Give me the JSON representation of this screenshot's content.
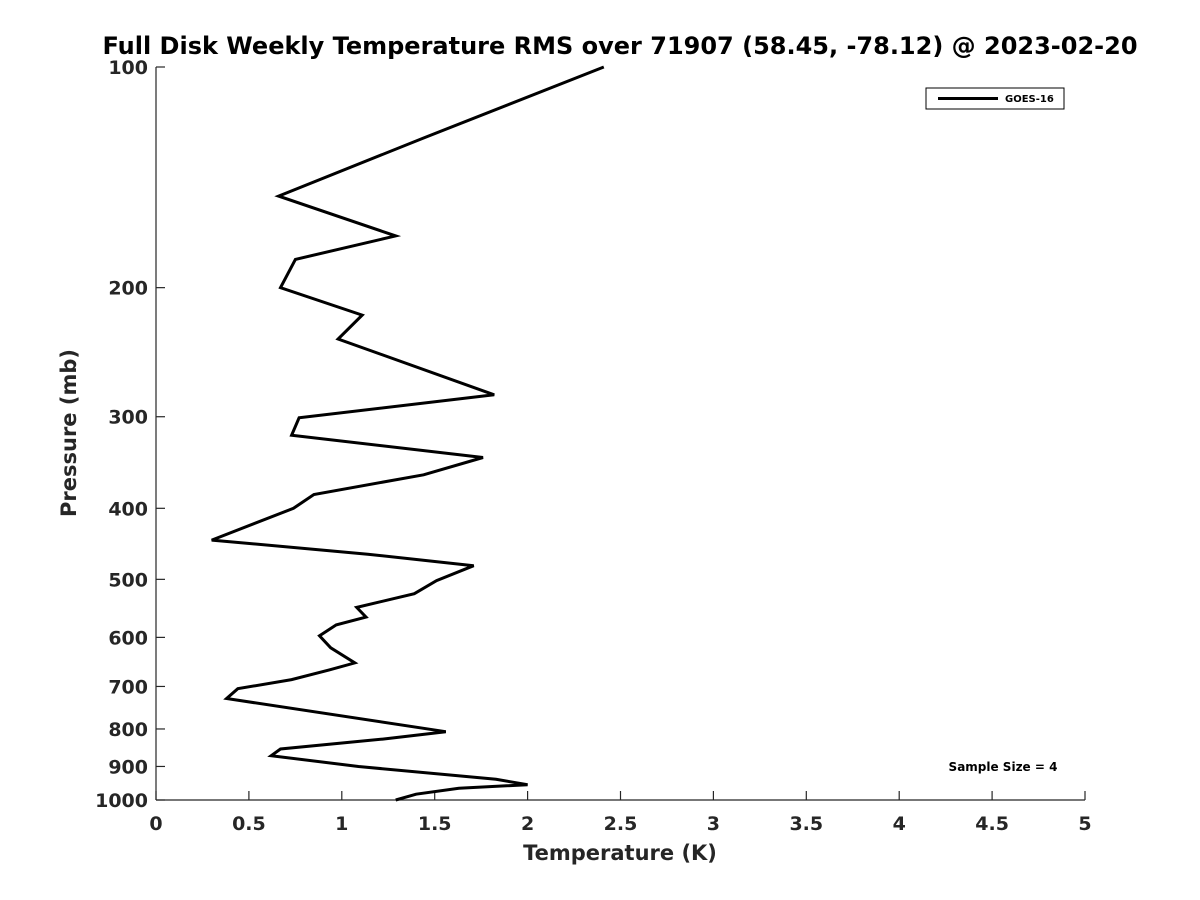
{
  "chart_data": {
    "type": "line",
    "title": "Full Disk Weekly Temperature RMS over 71907 (58.45, -78.12) @ 2023-02-20",
    "xlabel": "Temperature (K)",
    "ylabel": "Pressure (mb)",
    "xlim": [
      0,
      5
    ],
    "ylim": [
      100,
      1000
    ],
    "yscale": "log",
    "y_reversed": true,
    "xticks": [
      "0",
      "0.5",
      "1",
      "1.5",
      "2",
      "2.5",
      "3",
      "3.5",
      "4",
      "4.5",
      "5"
    ],
    "yticks": [
      "100",
      "200",
      "300",
      "400",
      "500",
      "600",
      "700",
      "800",
      "900",
      "1000"
    ],
    "grid": false,
    "legend": {
      "placement": "top-right"
    },
    "annotation": "Sample Size = 4",
    "series": [
      {
        "name": "GOES-16",
        "color": "#000000",
        "x": [
          2.41,
          1.44,
          0.66,
          1.29,
          0.75,
          0.67,
          1.11,
          0.98,
          1.82,
          0.77,
          0.73,
          1.76,
          1.44,
          0.85,
          0.74,
          0.3,
          1.14,
          1.71,
          1.51,
          1.39,
          1.08,
          1.13,
          0.97,
          0.88,
          0.94,
          1.07,
          0.93,
          0.73,
          0.44,
          0.38,
          1.56,
          1.22,
          0.67,
          0.62,
          1.09,
          1.83,
          2.0,
          1.63,
          1.4,
          1.29
        ],
        "y": [
          100,
          125,
          150,
          170,
          183,
          200,
          218,
          235,
          280,
          301,
          318,
          341,
          360,
          383,
          400,
          442,
          462,
          479,
          502,
          523,
          546,
          563,
          577,
          597,
          620,
          650,
          665,
          685,
          705,
          727,
          807,
          826,
          852,
          870,
          900,
          937,
          953,
          964,
          982,
          1000
        ]
      }
    ]
  }
}
